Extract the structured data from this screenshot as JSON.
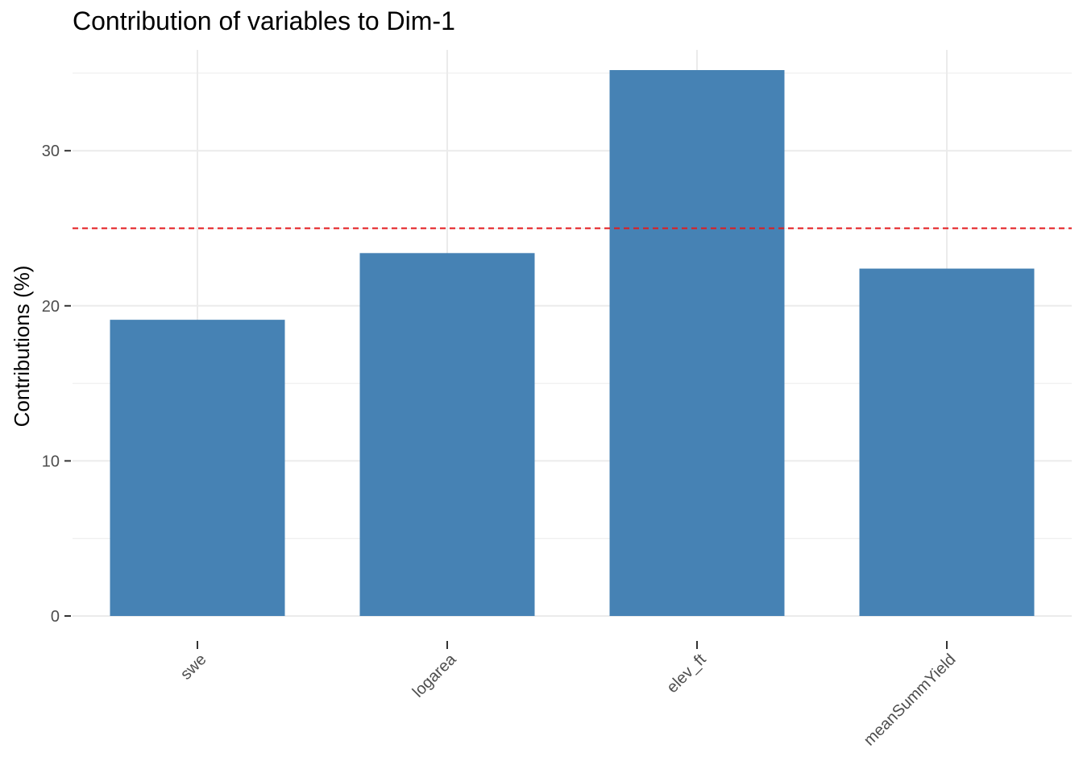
{
  "chart_data": {
    "type": "bar",
    "title": "Contribution of variables to Dim-1",
    "xlabel": "",
    "ylabel": "Contributions (%)",
    "categories": [
      "swe",
      "logarea",
      "elev_ft",
      "meanSummYield"
    ],
    "values": [
      19.1,
      23.4,
      35.2,
      22.4
    ],
    "ylim": [
      0,
      36.5
    ],
    "yticks": [
      0,
      10,
      20,
      30
    ],
    "reference_line": 25,
    "colors": {
      "bar": "#4682b4",
      "reference_line": "#e31a1c",
      "grid": "#ebebeb"
    },
    "grid": true,
    "legend": "none"
  }
}
